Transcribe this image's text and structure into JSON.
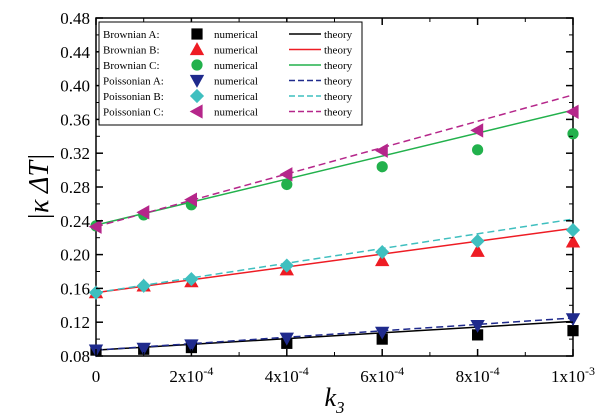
{
  "chart_data": {
    "type": "scatter",
    "ylabel": "|κ ΔT|",
    "xlabel": "k3",
    "xlim": [
      0,
      0.001
    ],
    "ylim": [
      0.08,
      0.48
    ],
    "y_ticks": [
      "0.08",
      "0.12",
      "0.16",
      "0.20",
      "0.24",
      "0.28",
      "0.32",
      "0.36",
      "0.40",
      "0.44",
      "0.48"
    ],
    "y_tick_values": [
      0.08,
      0.12,
      0.16,
      0.2,
      0.24,
      0.28,
      0.32,
      0.36,
      0.4,
      0.44,
      0.48
    ],
    "x_tick_values": [
      0,
      0.0002,
      0.0004,
      0.0006,
      0.0008,
      0.001
    ],
    "x_ticks": [
      {
        "base": "0",
        "exp": ""
      },
      {
        "base": "2x10",
        "exp": "-4"
      },
      {
        "base": "4x10",
        "exp": "-4"
      },
      {
        "base": "6x10",
        "exp": "-4"
      },
      {
        "base": "8x10",
        "exp": "-4"
      },
      {
        "base": "1x10",
        "exp": "-3"
      }
    ],
    "grid": false,
    "legend_placement": "top-left",
    "legend_numerical_label": "numerical",
    "legend_theory_label": "theory",
    "series": [
      {
        "name": "Brownian   A:",
        "marker": "square",
        "color": "#000000",
        "line_style": "solid",
        "x": [
          0,
          0.0001,
          0.0002,
          0.0004,
          0.0006,
          0.0008,
          0.001
        ],
        "numerical": [
          0.087,
          0.088,
          0.09,
          0.095,
          0.1,
          0.105,
          0.11
        ],
        "theory": [
          0.087,
          0.121
        ]
      },
      {
        "name": "Brownian   B:",
        "marker": "triangle-up",
        "color": "#ee1c24",
        "line_style": "solid",
        "x": [
          0,
          0.0001,
          0.0002,
          0.0004,
          0.0006,
          0.0008,
          0.001
        ],
        "numerical": [
          0.155,
          0.163,
          0.168,
          0.182,
          0.193,
          0.204,
          0.215
        ],
        "theory": [
          0.155,
          0.231
        ]
      },
      {
        "name": "Brownian   C:",
        "marker": "circle",
        "color": "#22b14c",
        "line_style": "solid",
        "x": [
          0,
          0.0001,
          0.0002,
          0.0004,
          0.0006,
          0.0008,
          0.001
        ],
        "numerical": [
          0.234,
          0.247,
          0.259,
          0.283,
          0.304,
          0.324,
          0.343
        ],
        "theory": [
          0.235,
          0.371
        ]
      },
      {
        "name": "Poissonian A:",
        "marker": "triangle-down",
        "color": "#1f2a8c",
        "line_style": "dashed",
        "x": [
          0,
          0.0001,
          0.0002,
          0.0004,
          0.0006,
          0.0008,
          0.001
        ],
        "numerical": [
          0.087,
          0.089,
          0.093,
          0.101,
          0.108,
          0.116,
          0.124
        ],
        "theory": [
          0.087,
          0.125
        ]
      },
      {
        "name": "Poissonian B:",
        "marker": "diamond",
        "color": "#3fbfbf",
        "line_style": "dashed",
        "x": [
          0,
          0.0001,
          0.0002,
          0.0004,
          0.0006,
          0.0008,
          0.001
        ],
        "numerical": [
          0.155,
          0.163,
          0.171,
          0.187,
          0.203,
          0.216,
          0.229
        ],
        "theory": [
          0.155,
          0.242
        ]
      },
      {
        "name": "Poissonian C:",
        "marker": "triangle-left",
        "color": "#b5268a",
        "line_style": "dashed",
        "x": [
          0,
          0.0001,
          0.0002,
          0.0004,
          0.0006,
          0.0008,
          0.001
        ],
        "numerical": [
          0.233,
          0.25,
          0.265,
          0.295,
          0.323,
          0.347,
          0.369
        ],
        "theory": [
          0.233,
          0.389
        ]
      }
    ]
  }
}
